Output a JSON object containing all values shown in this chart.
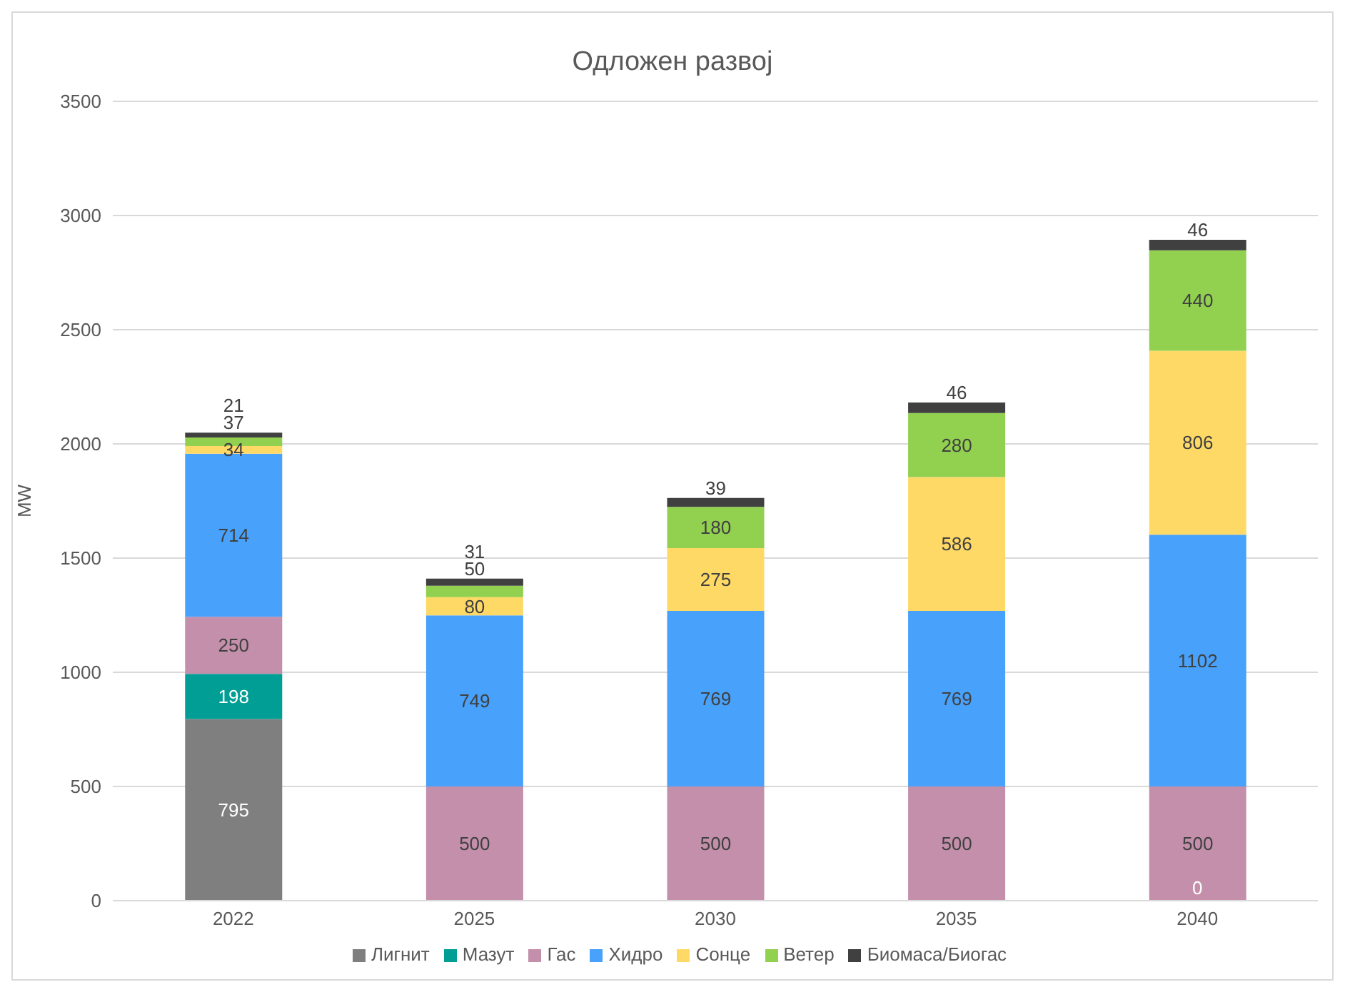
{
  "chart_data": {
    "type": "bar",
    "title": "Одложен развој",
    "ylabel": "MW",
    "categories": [
      "2022",
      "2025",
      "2030",
      "2035",
      "2040"
    ],
    "stacked": true,
    "ylim": [
      0,
      3500
    ],
    "yticks": [
      0,
      500,
      1000,
      1500,
      2000,
      2500,
      3000,
      3500
    ],
    "grid": "y",
    "legend": "bottom",
    "data_labels": true,
    "annotations": [
      {
        "text": "0",
        "x": "2040",
        "y": 0
      }
    ],
    "series": [
      {
        "name": "Лигнит",
        "color": "#7f7f7f",
        "values": [
          795,
          null,
          null,
          null,
          null
        ]
      },
      {
        "name": "Мазут",
        "color": "#009e94",
        "values": [
          198,
          null,
          null,
          null,
          null
        ]
      },
      {
        "name": "Гас",
        "color": "#c48fab",
        "values": [
          250,
          500,
          500,
          500,
          500
        ]
      },
      {
        "name": "Хидро",
        "color": "#48a1fa",
        "values": [
          714,
          749,
          769,
          769,
          1102
        ]
      },
      {
        "name": "Сонце",
        "color": "#ffd966",
        "values": [
          34,
          80,
          275,
          586,
          806
        ]
      },
      {
        "name": "Ветер",
        "color": "#92d050",
        "values": [
          37,
          50,
          180,
          280,
          440
        ]
      },
      {
        "name": "Биомаса/Биогас",
        "color": "#404040",
        "values": [
          21,
          31,
          39,
          46,
          46
        ]
      }
    ]
  }
}
